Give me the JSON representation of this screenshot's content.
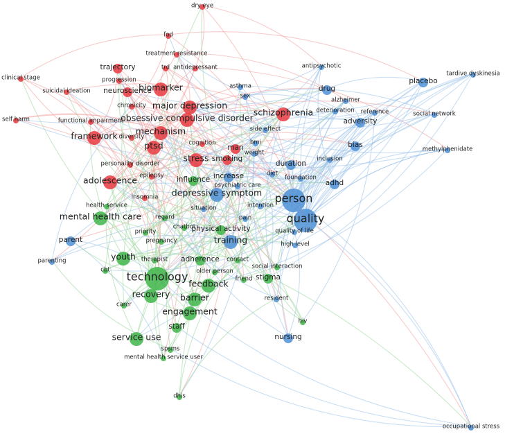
{
  "nodes": [
    {
      "label": "dry eye"
    },
    {
      "label": "fod"
    },
    {
      "label": "treatment resistance"
    },
    {
      "label": "antipsychotic"
    },
    {
      "label": "trajectory"
    },
    {
      "label": "antidepressant"
    },
    {
      "label": "trd"
    },
    {
      "label": "clinical stage"
    },
    {
      "label": "progression"
    },
    {
      "label": "asthma"
    },
    {
      "label": "placebo"
    },
    {
      "label": "tardive dyskinesia"
    },
    {
      "label": "suicidal ideation"
    },
    {
      "label": "neuroscience"
    },
    {
      "label": "biomarker"
    },
    {
      "label": "drug"
    },
    {
      "label": "sex"
    },
    {
      "label": "alzheimer"
    },
    {
      "label": "chronicity"
    },
    {
      "label": "major depression"
    },
    {
      "label": "deterioration"
    },
    {
      "label": "reference"
    },
    {
      "label": "schizophrenia"
    },
    {
      "label": "social network"
    },
    {
      "label": "self harm"
    },
    {
      "label": "functional impairment"
    },
    {
      "label": "obsessive compulsive disorder"
    },
    {
      "label": "adversity"
    },
    {
      "label": "mechanism"
    },
    {
      "label": "side effect"
    },
    {
      "label": "diversity"
    },
    {
      "label": "framework"
    },
    {
      "label": "cognition"
    },
    {
      "label": "ptsd"
    },
    {
      "label": "man"
    },
    {
      "label": "bmi"
    },
    {
      "label": "weight"
    },
    {
      "label": "bias"
    },
    {
      "label": "methylphenidate"
    },
    {
      "label": "stress"
    },
    {
      "label": "smoking"
    },
    {
      "label": "personality disorder"
    },
    {
      "label": "duration"
    },
    {
      "label": "inclusion"
    },
    {
      "label": "epilepsy"
    },
    {
      "label": "diet"
    },
    {
      "label": "foundation"
    },
    {
      "label": "adolescence"
    },
    {
      "label": "influence"
    },
    {
      "label": "increase"
    },
    {
      "label": "psychiatric care"
    },
    {
      "label": "adhd"
    },
    {
      "label": "insomnia"
    },
    {
      "label": "depressive symptom"
    },
    {
      "label": "person"
    },
    {
      "label": "intention"
    },
    {
      "label": "health service"
    },
    {
      "label": "situation"
    },
    {
      "label": "mental health care"
    },
    {
      "label": "regard"
    },
    {
      "label": "pain"
    },
    {
      "label": "quality"
    },
    {
      "label": "priority"
    },
    {
      "label": "chatbot"
    },
    {
      "label": "physical activity"
    },
    {
      "label": "quality of life"
    },
    {
      "label": "pregnancy"
    },
    {
      "label": "parent"
    },
    {
      "label": "training"
    },
    {
      "label": "high level"
    },
    {
      "label": "parenting"
    },
    {
      "label": "youth"
    },
    {
      "label": "therapist"
    },
    {
      "label": "adherence"
    },
    {
      "label": "contact"
    },
    {
      "label": "older person"
    },
    {
      "label": "social interaction"
    },
    {
      "label": "technology"
    },
    {
      "label": "cbt"
    },
    {
      "label": "feedback"
    },
    {
      "label": "stigma"
    },
    {
      "label": "recovery"
    },
    {
      "label": "barrier"
    },
    {
      "label": "friend"
    },
    {
      "label": "resident"
    },
    {
      "label": "carer"
    },
    {
      "label": "engagement"
    },
    {
      "label": "staff"
    },
    {
      "label": "hiv"
    },
    {
      "label": "service use"
    },
    {
      "label": "nursing"
    },
    {
      "label": "spsms"
    },
    {
      "label": "mental health service user"
    },
    {
      "label": "dhis"
    },
    {
      "label": "occupational stress"
    }
  ]
}
